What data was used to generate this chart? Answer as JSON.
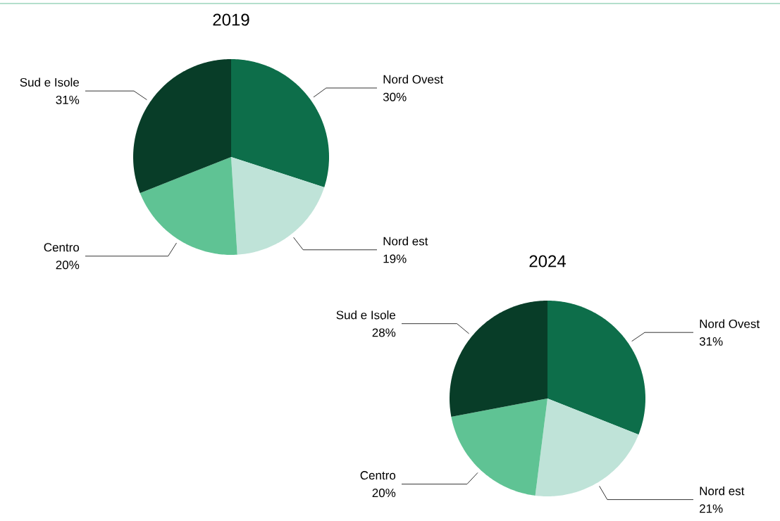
{
  "chart_data": [
    {
      "type": "pie",
      "title": "2019",
      "categories": [
        "Nord Ovest",
        "Nord est",
        "Centro",
        "Sud e Isole"
      ],
      "values": [
        30,
        19,
        20,
        31
      ],
      "value_labels": [
        "30%",
        "19%",
        "20%",
        "31%"
      ],
      "colors": [
        "#0d6e4a",
        "#bfe3d8",
        "#5fc394",
        "#083d28"
      ]
    },
    {
      "type": "pie",
      "title": "2024",
      "categories": [
        "Nord Ovest",
        "Nord est",
        "Centro",
        "Sud e Isole"
      ],
      "values": [
        31,
        21,
        20,
        28
      ],
      "value_labels": [
        "31%",
        "21%",
        "20%",
        "28%"
      ],
      "colors": [
        "#0d6e4a",
        "#bfe3d8",
        "#5fc394",
        "#083d28"
      ]
    }
  ]
}
